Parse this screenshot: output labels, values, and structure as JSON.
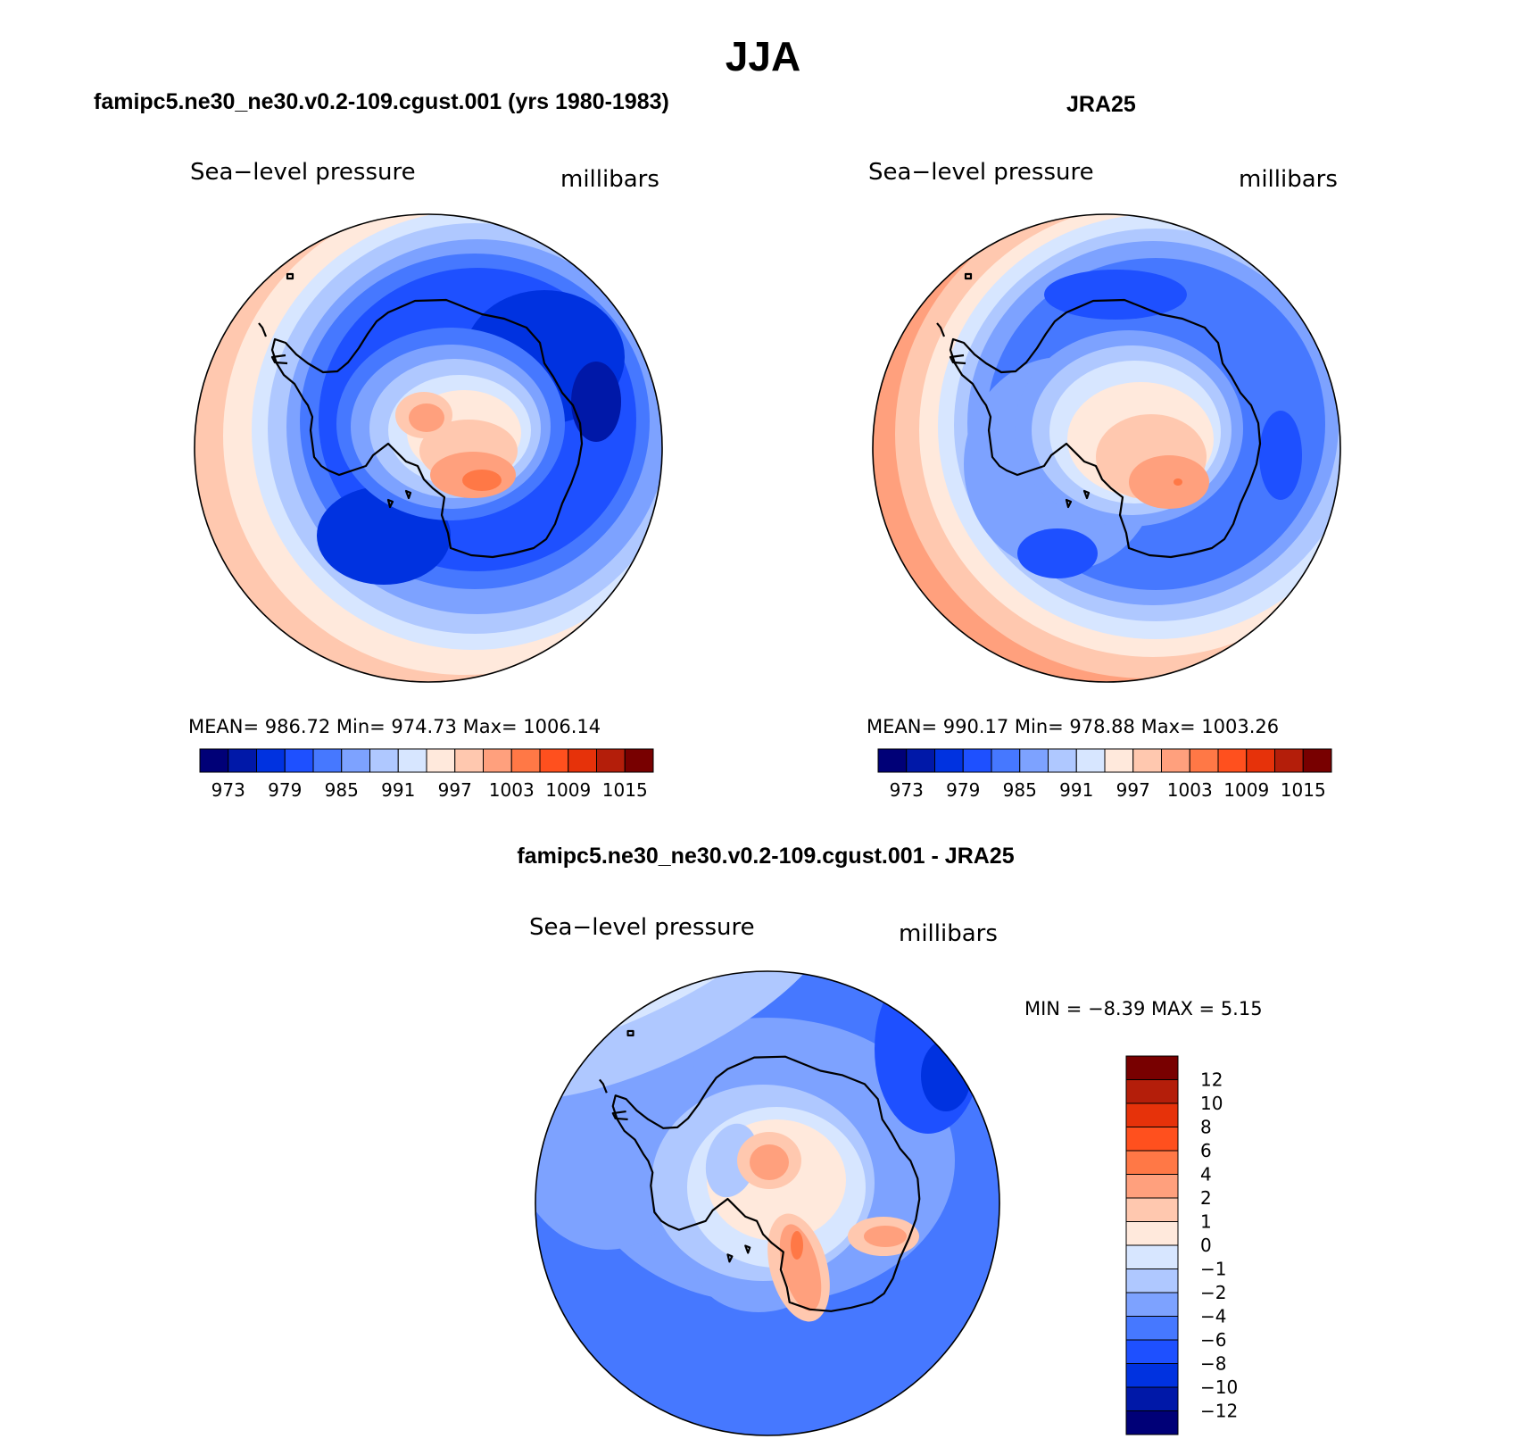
{
  "page_title": "JJA",
  "panels": [
    {
      "title": "famipc5.ne30_ne30.v0.2-109.cgust.001 (yrs 1980-1983)",
      "variable": "Sea−level pressure",
      "units": "millibars",
      "stats": {
        "mean": "986.72",
        "min": "974.73",
        "max": "1006.14",
        "text": "MEAN=  986.72   Min=  974.73   Max=  1006.14"
      },
      "colorbar": {
        "labels": [
          "973",
          "979",
          "985",
          "991",
          "997",
          "1003",
          "1009",
          "1015"
        ],
        "colors": [
          "#000077",
          "#0018A8",
          "#0032E0",
          "#1E50FF",
          "#4678FF",
          "#7DA2FF",
          "#AFC8FF",
          "#D7E6FF",
          "#FFE9DC",
          "#FFC8AF",
          "#FFA07D",
          "#FF7846",
          "#FF501E",
          "#E6320A",
          "#B41E0A",
          "#780000"
        ]
      },
      "map_values": {
        "outer_ring": 997,
        "mid_ocean": 980,
        "deep_low": 975,
        "interior_high": 1004
      }
    },
    {
      "title": "JRA25",
      "variable": "Sea−level pressure",
      "units": "millibars",
      "stats": {
        "mean": "990.17",
        "min": "978.88",
        "max": "1003.26",
        "text": "MEAN=  990.17   Min=  978.88   Max=  1003.26"
      },
      "colorbar": {
        "labels": [
          "973",
          "979",
          "985",
          "991",
          "997",
          "1003",
          "1009",
          "1015"
        ],
        "colors": [
          "#000077",
          "#0018A8",
          "#0032E0",
          "#1E50FF",
          "#4678FF",
          "#7DA2FF",
          "#AFC8FF",
          "#D7E6FF",
          "#FFE9DC",
          "#FFC8AF",
          "#FFA07D",
          "#FF7846",
          "#FF501E",
          "#E6320A",
          "#B41E0A",
          "#780000"
        ]
      },
      "map_values": {
        "outer_ring": 1000,
        "mid_ocean": 985,
        "deep_low": 979,
        "interior_high": 1003
      }
    }
  ],
  "difference": {
    "title": "famipc5.ne30_ne30.v0.2-109.cgust.001 - JRA25",
    "variable": "Sea−level pressure",
    "units": "millibars",
    "stats": {
      "min": "−8.39",
      "max": "5.15",
      "text": "MIN =    −8.39  MAX =     5.15"
    },
    "colorbar": {
      "labels": [
        "12",
        "10",
        "8",
        "6",
        "4",
        "2",
        "1",
        "0",
        "−1",
        "−2",
        "−4",
        "−6",
        "−8",
        "−10",
        "−12"
      ],
      "colors": [
        "#780000",
        "#B41E0A",
        "#E6320A",
        "#FF501E",
        "#FF7846",
        "#FFA07D",
        "#FFC8AF",
        "#FFE9DC",
        "#D7E6FF",
        "#AFC8FF",
        "#7DA2FF",
        "#4678FF",
        "#1E50FF",
        "#0032E0",
        "#0018A8",
        "#000077"
      ]
    }
  }
}
